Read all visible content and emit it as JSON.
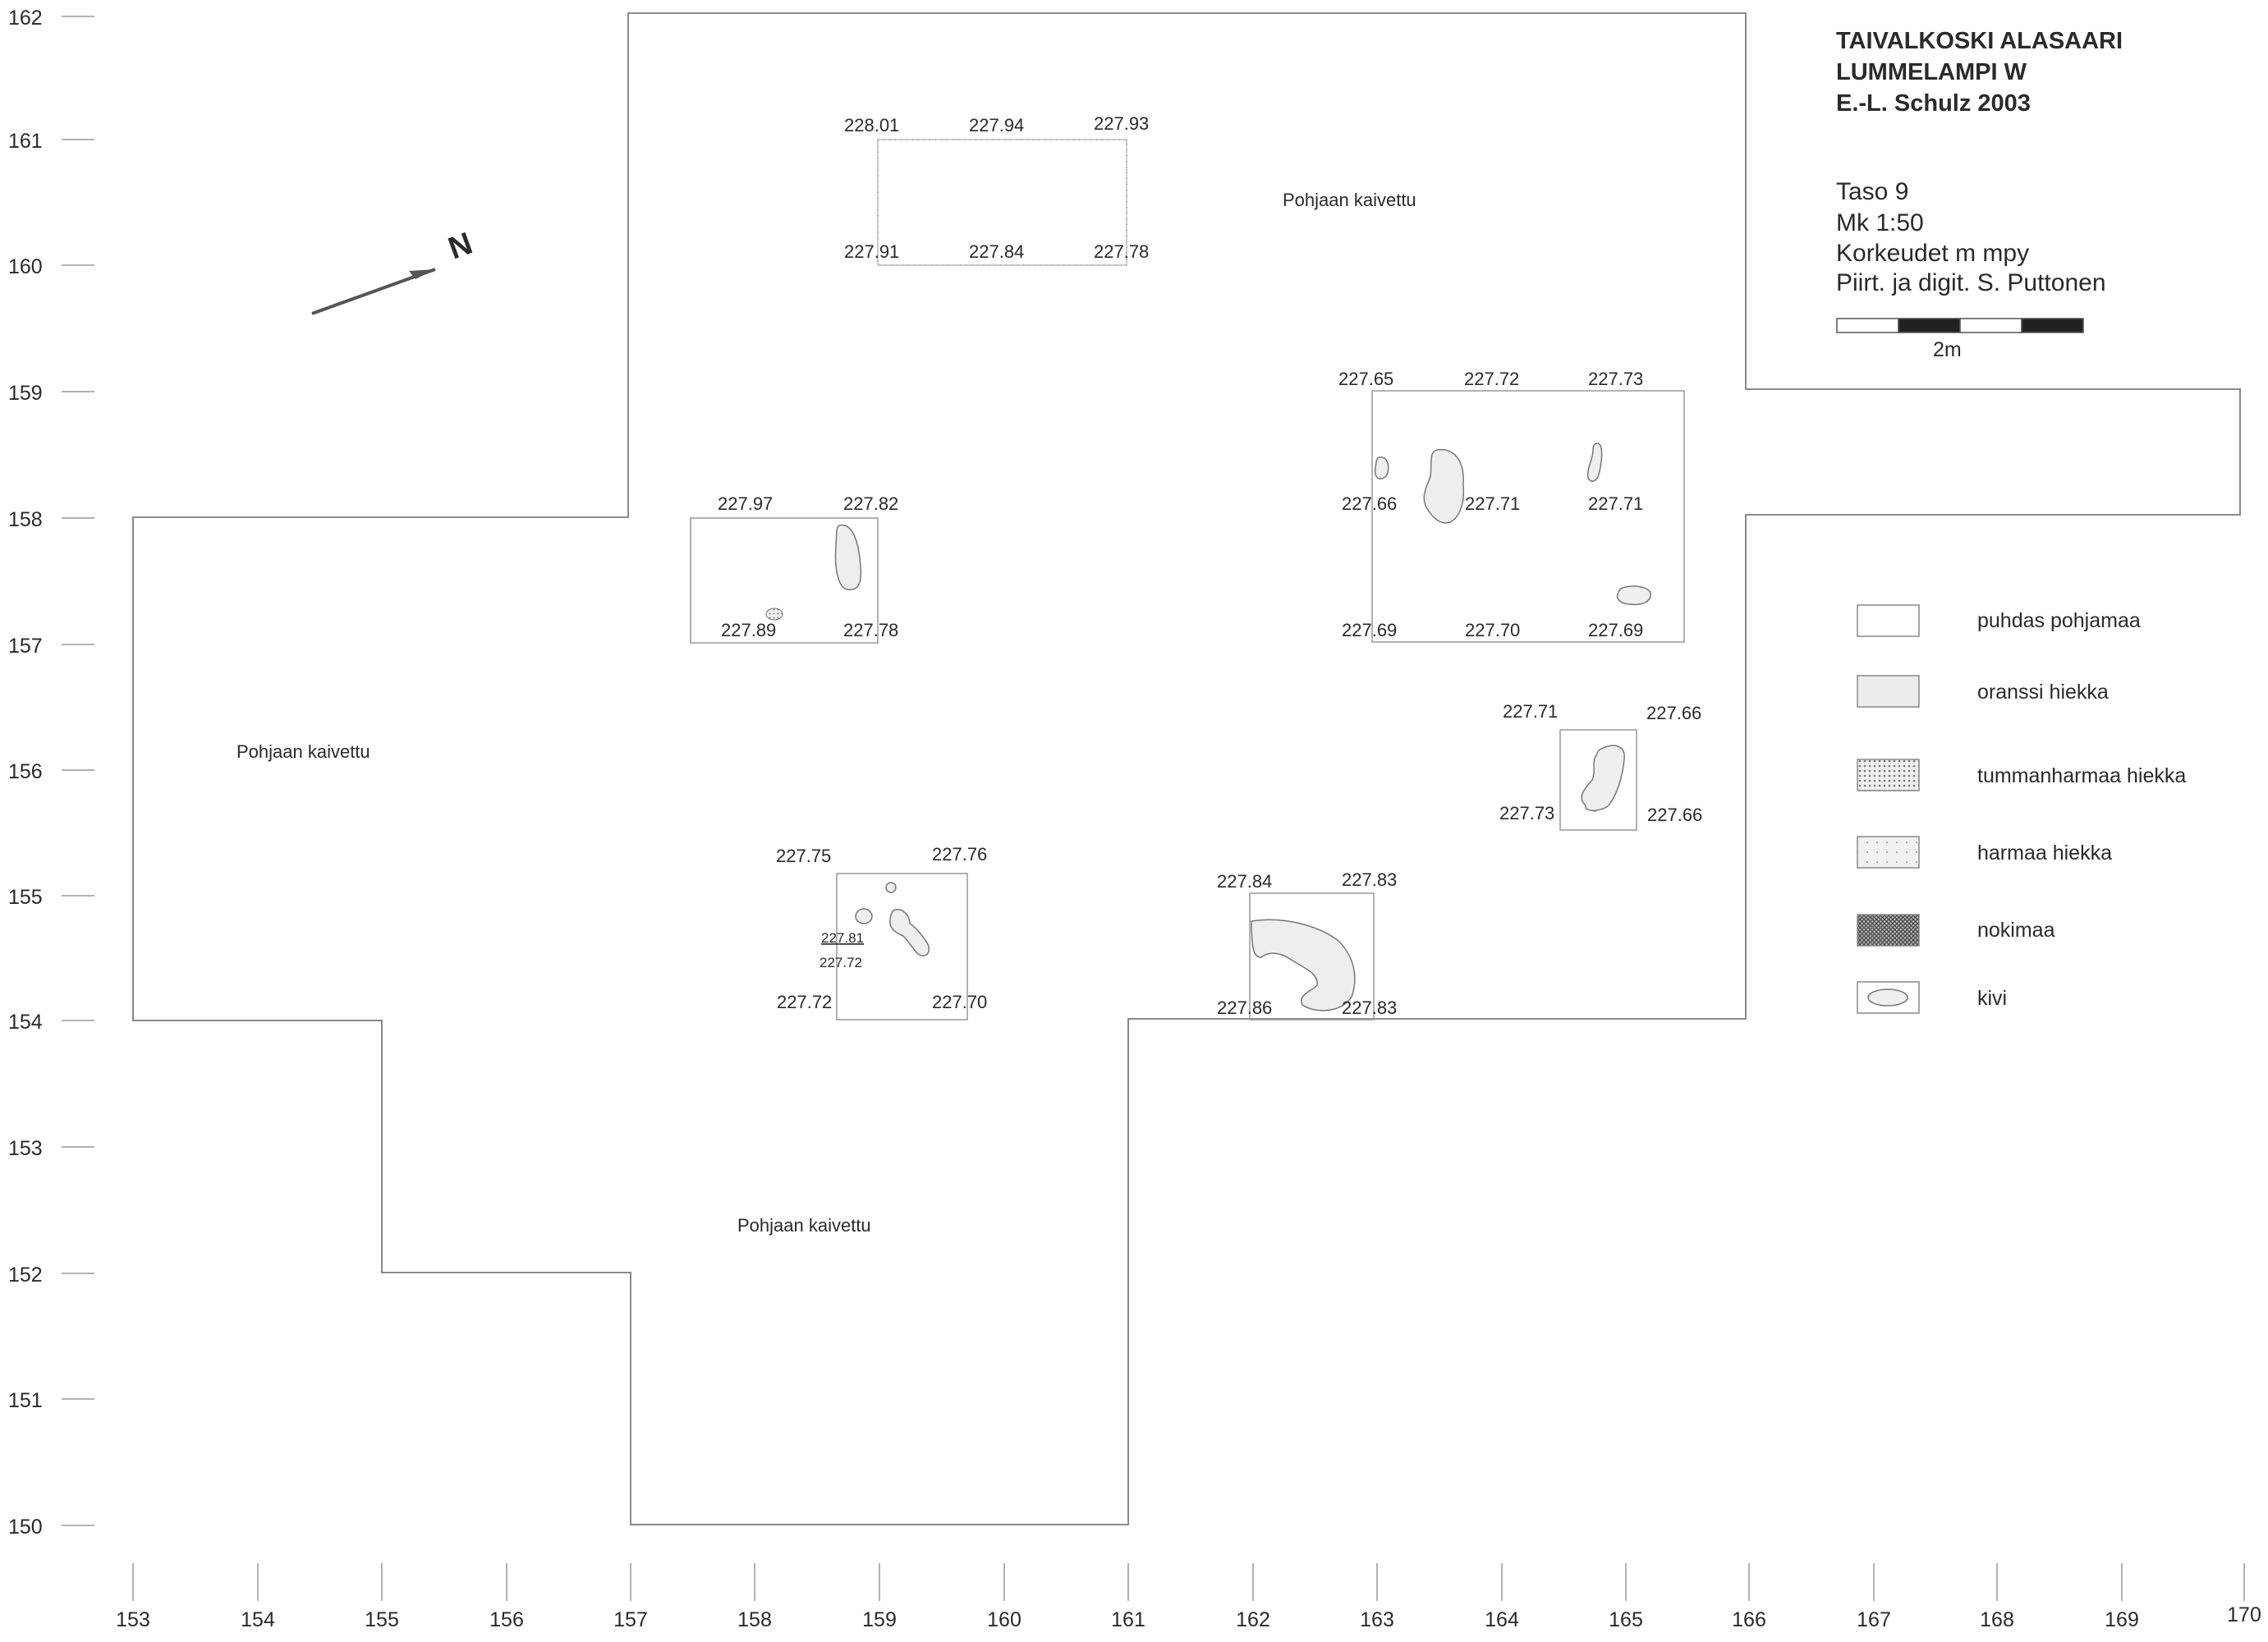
{
  "title_block": {
    "lines": [
      "TAIVALKOSKI ALASAARI",
      "LUMMELAMPI W",
      "E.-L. Schulz 2003"
    ]
  },
  "info_block": {
    "lines": [
      "Taso 9",
      "Mk 1:50",
      "Korkeudet m mpy",
      "Piirt. ja digit. S. Puttonen"
    ]
  },
  "scale_bar": {
    "label": "2m",
    "length_m": 2
  },
  "north_arrow": {
    "icon": "north-arrow-icon",
    "letter": "N"
  },
  "axes": {
    "y_ticks": [
      "162",
      "161",
      "160",
      "159",
      "158",
      "157",
      "156",
      "155",
      "154",
      "153",
      "152",
      "151",
      "150"
    ],
    "x_ticks": [
      "153",
      "154",
      "155",
      "156",
      "157",
      "158",
      "159",
      "160",
      "161",
      "162",
      "163",
      "164",
      "165",
      "166",
      "167",
      "168",
      "169",
      "170"
    ]
  },
  "area_labels": [
    "Pohjaan kaivettu",
    "Pohjaan kaivettu",
    "Pohjaan kaivettu"
  ],
  "test_pits": [
    {
      "elevations": [
        "228.01",
        "227.94",
        "227.93",
        "227.91",
        "227.84",
        "227.78"
      ]
    },
    {
      "elevations": [
        "227.97",
        "227.82",
        "227.89",
        "227.78"
      ]
    },
    {
      "elevations": [
        "227.65",
        "227.72",
        "227.73",
        "227.66",
        "227.71",
        "227.71",
        "227.69",
        "227.70",
        "227.69"
      ]
    },
    {
      "elevations": [
        "227.71",
        "227.66",
        "227.73",
        "227.66"
      ]
    },
    {
      "elevations": [
        "227.75",
        "227.76",
        "227.81",
        "227.72",
        "227.72",
        "227.70"
      ]
    },
    {
      "elevations": [
        "227.84",
        "227.83",
        "227.86",
        "227.83"
      ]
    }
  ],
  "legend": [
    {
      "label": "puhdas pohjamaa",
      "pattern": "plain"
    },
    {
      "label": "oranssi hiekka",
      "pattern": "light-fill"
    },
    {
      "label": "tummanharmaa hiekka",
      "pattern": "dense-dots"
    },
    {
      "label": "harmaa hiekka",
      "pattern": "sparse-dots"
    },
    {
      "label": "nokimaa",
      "pattern": "crosshatch"
    },
    {
      "label": "kivi",
      "pattern": "stone"
    }
  ]
}
